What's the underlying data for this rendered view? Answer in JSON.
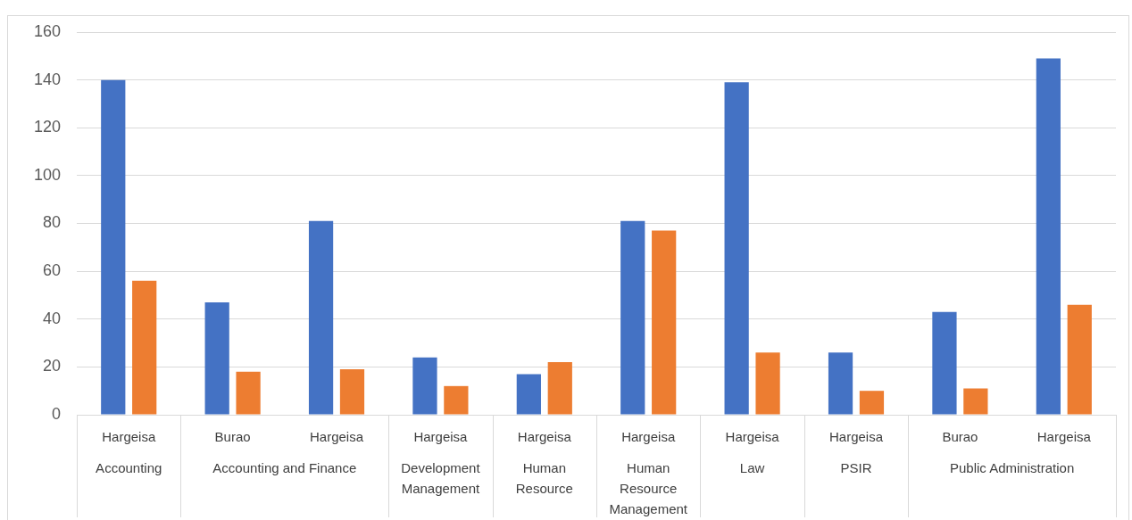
{
  "chart_data": {
    "type": "bar",
    "categories": [
      [
        "Hargeisa",
        "Accounting"
      ],
      [
        "Burao",
        "Accounting and Finance"
      ],
      [
        "Hargeisa",
        null
      ],
      [
        "Hargeisa",
        "Development Management"
      ],
      [
        "Hargeisa",
        "Human Resource"
      ],
      [
        "Hargeisa",
        "Human Resource Management"
      ],
      [
        "Hargeisa",
        "Law"
      ],
      [
        "Hargeisa",
        "PSIR"
      ],
      [
        "Burao",
        "Public Administration"
      ],
      [
        "Hargeisa",
        null
      ]
    ],
    "series": [
      {
        "color": "#4472c4",
        "values": [
          140,
          47,
          81,
          24,
          17,
          81,
          139,
          26,
          43,
          149
        ]
      },
      {
        "color": "#ed7d31",
        "values": [
          56,
          18,
          19,
          12,
          22,
          77,
          26,
          10,
          11,
          46
        ]
      }
    ],
    "ylim": [
      0,
      160
    ],
    "yticks": [
      0,
      20,
      40,
      60,
      80,
      100,
      120,
      140,
      160
    ],
    "grid": "y",
    "legend": false
  }
}
